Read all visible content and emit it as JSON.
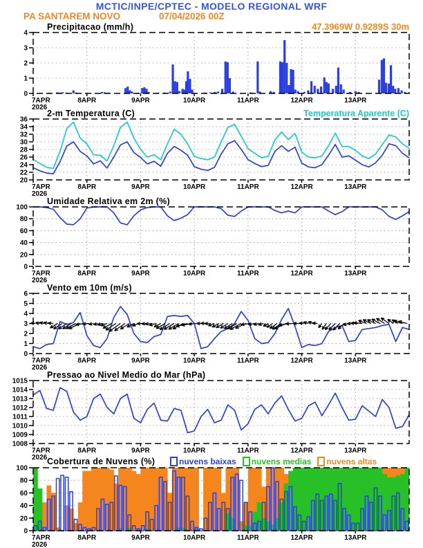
{
  "header": {
    "title": "MCTIC/INPE/CPTEC - MODELO REGIONAL WRF",
    "station": "PA SANTAREM NOVO",
    "run": "07/04/2026 00Z",
    "location": "47.3969W 0.9289S 30m"
  },
  "colors": {
    "blue": "#2b3fe0",
    "cyan": "#19caca",
    "orange": "#f5861d",
    "green": "#27c127",
    "title_blue": "#3353e6",
    "grid": "#a8a8a8",
    "frame": "#000000"
  },
  "x_axis": {
    "year": "2026",
    "day_labels": [
      "7APR",
      "8APR",
      "9APR",
      "10APR",
      "11APR",
      "12APR",
      "13APR"
    ],
    "start_day": 7,
    "end_day": 14
  },
  "chart_data": [
    {
      "id": "precipitation",
      "type": "bar",
      "title": "Precipitacao (mm/h)",
      "ylim": [
        0,
        4
      ],
      "yticks": [
        0,
        1,
        2,
        3,
        4
      ],
      "bars": [
        [
          7.3,
          0.05
        ],
        [
          7.45,
          0.07
        ],
        [
          7.5,
          0.05
        ],
        [
          7.55,
          0.08
        ],
        [
          7.62,
          0.05
        ],
        [
          7.75,
          0.2
        ],
        [
          7.8,
          0.06
        ],
        [
          8.28,
          0.1
        ],
        [
          8.33,
          0.08
        ],
        [
          8.4,
          0.05
        ],
        [
          8.72,
          0.35
        ],
        [
          8.76,
          0.45
        ],
        [
          8.8,
          0.2
        ],
        [
          8.84,
          0.12
        ],
        [
          8.95,
          0.05
        ],
        [
          9.03,
          0.35
        ],
        [
          9.07,
          0.4
        ],
        [
          9.11,
          0.3
        ],
        [
          9.15,
          0.1
        ],
        [
          9.33,
          0.05
        ],
        [
          9.45,
          0.06
        ],
        [
          9.55,
          0.12
        ],
        [
          9.6,
          1.9
        ],
        [
          9.64,
          0.8
        ],
        [
          9.68,
          0.75
        ],
        [
          9.72,
          0.15
        ],
        [
          9.78,
          0.3
        ],
        [
          9.82,
          0.25
        ],
        [
          9.85,
          0.8
        ],
        [
          9.88,
          1.45
        ],
        [
          9.92,
          0.95
        ],
        [
          9.96,
          0.25
        ],
        [
          10.2,
          0.06
        ],
        [
          10.3,
          0.06
        ],
        [
          10.38,
          0.1
        ],
        [
          10.44,
          0.12
        ],
        [
          10.52,
          0.3
        ],
        [
          10.58,
          2.1
        ],
        [
          10.62,
          2.05
        ],
        [
          10.66,
          1.0
        ],
        [
          10.72,
          0.12
        ],
        [
          11.05,
          0.06
        ],
        [
          11.18,
          2.1
        ],
        [
          11.22,
          0.12
        ],
        [
          11.42,
          0.15
        ],
        [
          11.48,
          0.1
        ],
        [
          11.6,
          2.1
        ],
        [
          11.64,
          2.05
        ],
        [
          11.68,
          3.5
        ],
        [
          11.72,
          2.0
        ],
        [
          11.76,
          0.55
        ],
        [
          11.8,
          1.6
        ],
        [
          11.84,
          1.55
        ],
        [
          11.88,
          0.25
        ],
        [
          11.93,
          0.15
        ],
        [
          12.05,
          0.1
        ],
        [
          12.12,
          0.2
        ],
        [
          12.18,
          0.8
        ],
        [
          12.24,
          0.5
        ],
        [
          12.3,
          0.3
        ],
        [
          12.36,
          0.45
        ],
        [
          12.42,
          1.05
        ],
        [
          12.46,
          0.75
        ],
        [
          12.5,
          0.65
        ],
        [
          12.58,
          0.3
        ],
        [
          12.64,
          0.5
        ],
        [
          12.68,
          1.7
        ],
        [
          12.73,
          0.6
        ],
        [
          12.78,
          0.25
        ],
        [
          12.9,
          0.1
        ],
        [
          13.0,
          0.15
        ],
        [
          13.06,
          0.1
        ],
        [
          13.44,
          0.9
        ],
        [
          13.49,
          2.2
        ],
        [
          13.53,
          2.3
        ],
        [
          13.57,
          0.7
        ],
        [
          13.62,
          0.65
        ],
        [
          13.66,
          1.85
        ],
        [
          13.7,
          0.5
        ],
        [
          13.74,
          0.3
        ],
        [
          13.8,
          0.35
        ],
        [
          13.86,
          0.2
        ],
        [
          13.92,
          0.1
        ]
      ]
    },
    {
      "id": "temperature",
      "type": "line",
      "title": "2-m Temperatura (C)",
      "right_label": "Temperatura Aparente (C)",
      "ylim": [
        20,
        36
      ],
      "yticks": [
        20,
        22,
        24,
        26,
        28,
        30,
        32,
        34,
        36
      ],
      "interval_hours": 3,
      "series": [
        {
          "name": "2-m Temperatura (C)",
          "color_key": "blue",
          "values": [
            23.2,
            22.4,
            21.8,
            21.6,
            24.8,
            28.9,
            30.0,
            27.5,
            26.3,
            24.2,
            25.0,
            23.1,
            26.0,
            29.2,
            30.0,
            27.2,
            25.9,
            24.2,
            24.9,
            23.6,
            27.0,
            28.8,
            27.8,
            26.5,
            23.5,
            22.8,
            22.5,
            23.3,
            26.8,
            29.5,
            30.3,
            28.0,
            25.3,
            24.3,
            23.5,
            23.8,
            27.5,
            29.0,
            27.5,
            28.6,
            24.4,
            23.4,
            23.2,
            24.0,
            26.5,
            29.3,
            26.0,
            26.3,
            25.2,
            24.0,
            23.4,
            24.5,
            26.5,
            29.5,
            29.0,
            27.0,
            25.8
          ]
        },
        {
          "name": "Temperatura Aparente (C)",
          "color_key": "cyan",
          "values": [
            25.4,
            24.3,
            23.3,
            23.0,
            27.5,
            33.5,
            35.2,
            31.0,
            29.5,
            26.6,
            26.5,
            25.0,
            29.0,
            33.8,
            35.2,
            31.0,
            28.0,
            26.0,
            26.6,
            25.3,
            29.5,
            33.3,
            32.0,
            29.5,
            26.2,
            25.6,
            25.3,
            26.0,
            30.0,
            33.8,
            34.6,
            31.5,
            28.2,
            27.0,
            25.8,
            26.2,
            30.5,
            32.6,
            30.6,
            32.2,
            27.3,
            26.0,
            25.8,
            26.3,
            29.0,
            32.3,
            28.8,
            28.8,
            27.8,
            26.3,
            25.6,
            26.8,
            29.3,
            31.8,
            31.3,
            29.5,
            28.3
          ]
        }
      ]
    },
    {
      "id": "humidity",
      "type": "line",
      "title": "Umidade Relativa em 2m (%)",
      "ylim": [
        0,
        100
      ],
      "yticks": [
        0,
        20,
        40,
        60,
        80,
        100
      ],
      "interval_hours": 3,
      "series": [
        {
          "name": "Umidade Relativa",
          "color_key": "blue",
          "values": [
            100,
            100,
            99,
            96,
            82,
            71,
            70,
            80,
            98,
            100,
            100,
            100,
            90,
            73,
            70,
            85,
            95,
            99,
            100,
            100,
            85,
            77,
            81,
            87,
            100,
            100,
            100,
            100,
            97,
            86,
            84,
            93,
            100,
            100,
            100,
            100,
            94,
            90,
            93,
            90,
            100,
            100,
            100,
            100,
            93,
            87,
            92,
            100,
            100,
            100,
            100,
            100,
            95,
            84,
            79,
            85,
            92
          ]
        }
      ]
    },
    {
      "id": "wind",
      "type": "line-vectors",
      "title": "Vento em 10m (m/s)",
      "ylim": [
        0,
        6
      ],
      "yticks": [
        0,
        1,
        2,
        3,
        4,
        5,
        6
      ],
      "interval_hours": 3,
      "series": [
        {
          "name": "Velocidade do vento",
          "color_key": "blue",
          "values": [
            0.7,
            0.5,
            0.9,
            1.0,
            3.2,
            2.9,
            3.1,
            4.1,
            1.8,
            0.8,
            0.6,
            1.5,
            3.6,
            4.7,
            3.9,
            2.0,
            1.2,
            1.1,
            1.7,
            1.9,
            3.7,
            3.8,
            3.7,
            3.8,
            3.0,
            0.5,
            0.7,
            1.5,
            2.2,
            2.5,
            3.0,
            4.2,
            3.3,
            1.5,
            1.0,
            1.1,
            2.0,
            3.4,
            4.5,
            2.7,
            0.6,
            0.9,
            0.8,
            1.0,
            2.2,
            2.6,
            2.8,
            1.2,
            1.3,
            2.4,
            2.5,
            2.6,
            2.8,
            2.9,
            1.2,
            2.6,
            2.4
          ]
        }
      ],
      "vectors": {
        "interval_hours": 2,
        "baseline": 3,
        "dirs_deg": [
          185,
          190,
          192,
          190,
          185,
          150,
          148,
          146,
          148,
          152,
          155,
          172,
          175,
          168,
          165,
          163,
          160,
          150,
          147,
          145,
          145,
          148,
          152,
          158,
          178,
          176,
          174,
          165,
          152,
          150,
          148,
          150,
          150,
          152,
          165,
          170,
          175,
          180,
          182,
          178,
          160,
          152,
          150,
          148,
          148,
          150,
          152,
          155,
          172,
          170,
          168,
          165,
          150,
          147,
          145,
          148,
          155,
          172,
          178,
          180,
          185,
          195,
          200,
          185,
          128,
          125,
          132,
          135,
          135,
          138,
          165,
          178,
          182,
          185,
          200,
          205,
          205,
          208,
          212,
          215,
          215,
          212,
          198,
          195
        ]
      }
    },
    {
      "id": "pressure",
      "type": "line",
      "title": "Pressao ao Nivel Medio do Mar (hPa)",
      "ylim": [
        1008,
        1015
      ],
      "yticks": [
        1008,
        1009,
        1010,
        1011,
        1012,
        1013,
        1014,
        1015
      ],
      "interval_hours": 3,
      "series": [
        {
          "name": "Pressao ao nivel do mar",
          "color_key": "blue",
          "values": [
            1013.4,
            1013.9,
            1011.9,
            1011.7,
            1014.2,
            1013.8,
            1011.5,
            1010.6,
            1011.0,
            1013.0,
            1013.5,
            1012.0,
            1011.3,
            1013.0,
            1013.5,
            1010.8,
            1010.3,
            1011.8,
            1012.5,
            1010.6,
            1010.5,
            1011.9,
            1011.7,
            1009.2,
            1009.4,
            1011.0,
            1011.8,
            1010.3,
            1010.6,
            1012.3,
            1011.7,
            1009.5,
            1010.2,
            1011.8,
            1012.3,
            1011.3,
            1012.5,
            1013.3,
            1011.8,
            1010.5,
            1010.8,
            1012.2,
            1012.6,
            1011.1,
            1012.3,
            1013.6,
            1012.0,
            1010.6,
            1010.7,
            1012.2,
            1011.6,
            1011.0,
            1012.9,
            1012.0,
            1009.7,
            1009.9,
            1011.2
          ]
        }
      ]
    },
    {
      "id": "clouds",
      "type": "bar-overlay",
      "title": "Cobertura de Nuvens (%)",
      "ylim": [
        0,
        100
      ],
      "yticks": [
        0,
        20,
        40,
        60,
        80,
        100
      ],
      "interval_hours": 2,
      "legend": [
        {
          "label": "nuvens baixas",
          "color_key": "blue",
          "style": "outline"
        },
        {
          "label": "nuvens medias",
          "color_key": "green",
          "style": "fill"
        },
        {
          "label": "nuvens altas",
          "color_key": "orange",
          "style": "fill"
        }
      ],
      "series": [
        {
          "name": "nuvens altas",
          "color_key": "orange",
          "style": "fill",
          "values": [
            0,
            5,
            45,
            72,
            60,
            5,
            0,
            40,
            35,
            12,
            45,
            95,
            95,
            100,
            100,
            100,
            100,
            97,
            75,
            100,
            100,
            100,
            95,
            90,
            100,
            100,
            100,
            100,
            100,
            100,
            60,
            100,
            100,
            100,
            100,
            100,
            100,
            0,
            100,
            100,
            100,
            100,
            60,
            100,
            100,
            100,
            15,
            45,
            100,
            100,
            100,
            70,
            100,
            100,
            100,
            100,
            90,
            60,
            30,
            20,
            0,
            0,
            0,
            0,
            0,
            0,
            0,
            0,
            0,
            0,
            0,
            0,
            0,
            0,
            0,
            0,
            0,
            0,
            100,
            100,
            100,
            100,
            100,
            100
          ]
        },
        {
          "name": "nuvens medias",
          "color_key": "green",
          "style": "fill",
          "values": [
            100,
            67,
            0,
            0,
            0,
            0,
            0,
            0,
            0,
            0,
            0,
            0,
            0,
            0,
            0,
            0,
            0,
            0,
            0,
            4,
            0,
            4,
            0,
            0,
            0,
            3,
            0,
            0,
            0,
            0,
            0,
            0,
            5,
            4,
            0,
            0,
            4,
            0,
            0,
            0,
            0,
            0,
            0,
            28,
            20,
            0,
            0,
            8,
            8,
            30,
            45,
            20,
            15,
            10,
            20,
            45,
            75,
            95,
            100,
            100,
            100,
            100,
            100,
            100,
            100,
            100,
            100,
            100,
            100,
            100,
            100,
            100,
            100,
            100,
            100,
            100,
            100,
            100,
            90,
            85,
            85,
            88,
            90,
            100
          ]
        },
        {
          "name": "nuvens baixas",
          "color_key": "blue",
          "style": "outline",
          "values": [
            8,
            15,
            5,
            50,
            55,
            83,
            88,
            85,
            62,
            18,
            10,
            5,
            3,
            5,
            35,
            50,
            42,
            45,
            87,
            72,
            70,
            25,
            8,
            3,
            8,
            30,
            18,
            40,
            85,
            78,
            45,
            95,
            85,
            85,
            55,
            15,
            5,
            3,
            20,
            45,
            60,
            35,
            45,
            35,
            85,
            90,
            80,
            45,
            30,
            12,
            15,
            45,
            70,
            100,
            78,
            50,
            62,
            70,
            38,
            25,
            15,
            22,
            48,
            58,
            48,
            55,
            58,
            48,
            75,
            35,
            25,
            12,
            12,
            35,
            55,
            45,
            68,
            55,
            25,
            32,
            55,
            60,
            35,
            15
          ]
        }
      ]
    }
  ]
}
